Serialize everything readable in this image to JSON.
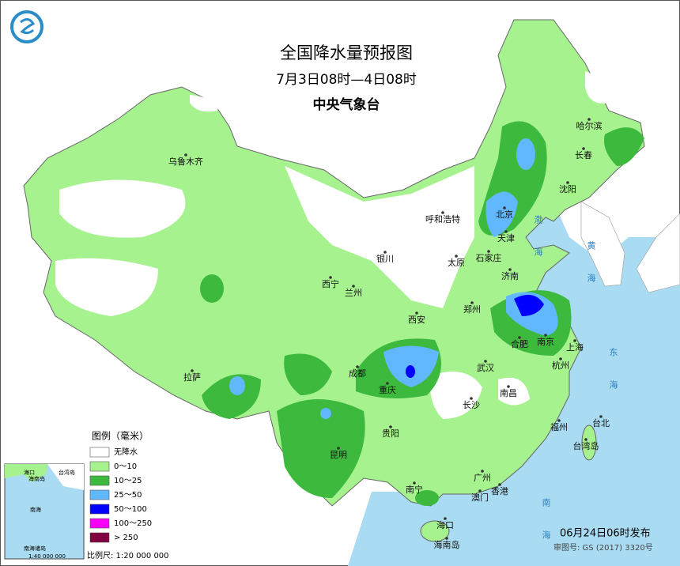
{
  "header": {
    "title": "全国降水量预报图",
    "subtitle": "7月3日08时—4日08时",
    "issuer": "中央气象台"
  },
  "legend": {
    "title": "图例（毫米）",
    "items": [
      {
        "label": "无降水",
        "color": "#ffffff"
      },
      {
        "label": "0～10",
        "color": "#a6f28f"
      },
      {
        "label": "10～25",
        "color": "#3dba3d"
      },
      {
        "label": "25～50",
        "color": "#61b8ff"
      },
      {
        "label": "50～100",
        "color": "#0000ff"
      },
      {
        "label": "100～250",
        "color": "#fa00fa"
      },
      {
        "label": "> 250",
        "color": "#800040"
      }
    ]
  },
  "cities": [
    "乌鲁木齐",
    "哈尔滨",
    "长春",
    "沈阳",
    "呼和浩特",
    "北京",
    "天津",
    "银川",
    "太原",
    "石家庄",
    "济南",
    "西宁",
    "兰州",
    "郑州",
    "西安",
    "合肥",
    "南京",
    "上海",
    "成都",
    "武汉",
    "杭州",
    "拉萨",
    "重庆",
    "长沙",
    "南昌",
    "福州",
    "台北",
    "贵阳",
    "昆明",
    "广州",
    "南宁",
    "澳门",
    "香港",
    "海口",
    "台湾岛",
    "海南岛"
  ],
  "seas": [
    "渤海",
    "黄海",
    "东海",
    "南海"
  ],
  "inset": {
    "labels": [
      "海口",
      "海南岛",
      "南海",
      "南海诸岛",
      "台湾岛"
    ],
    "scale": "1:40 000 000"
  },
  "footer": {
    "issued": "06月24日06时发布",
    "approval": "审图号: GS (2017) 3320号",
    "scale": "比例尺: 1:20 000 000"
  }
}
